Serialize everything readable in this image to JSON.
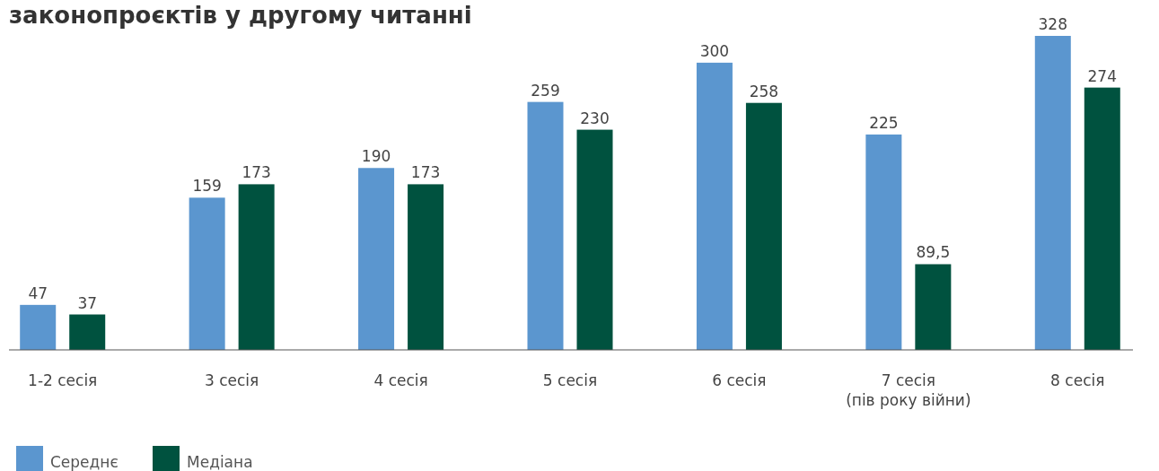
{
  "chart_data": {
    "type": "bar",
    "title": "законопроєктів у другому читанні",
    "categories": [
      "1-2 сесія",
      "3 сесія",
      "4 сесія",
      "5 сесія",
      "6 сесія",
      "7 сесія\n(пів року війни)",
      "8 сесія"
    ],
    "series": [
      {
        "name": "Середнє",
        "color": "#5b96cf",
        "values": [
          47,
          159,
          190,
          259,
          300,
          225,
          328
        ],
        "value_labels": [
          "47",
          "159",
          "190",
          "259",
          "300",
          "225",
          "328"
        ]
      },
      {
        "name": "Медіана",
        "color": "#00523f",
        "values": [
          37,
          173,
          173,
          230,
          258,
          89.5,
          274
        ],
        "value_labels": [
          "37",
          "173",
          "173",
          "230",
          "258",
          "89,5",
          "274"
        ]
      }
    ],
    "legend": "bottom left"
  }
}
